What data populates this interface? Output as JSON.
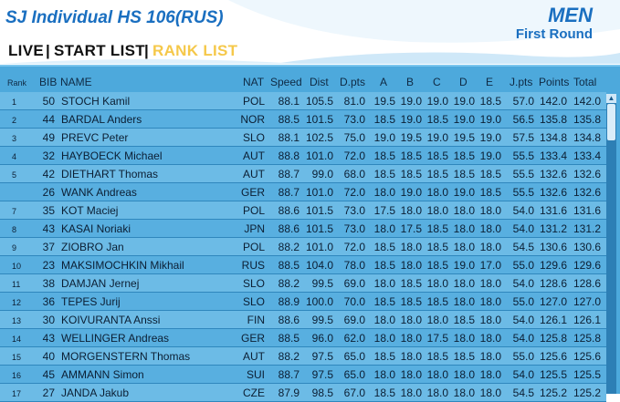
{
  "header": {
    "title": "SJ Individual HS 106(RUS)",
    "gender": "MEN",
    "round": "First Round"
  },
  "tabs": [
    {
      "label": "LIVE",
      "active": false
    },
    {
      "label": "START LIST",
      "active": false
    },
    {
      "label": "RANK LIST",
      "active": true
    }
  ],
  "separator": "|",
  "columns": {
    "rank": "Rank",
    "bib": "BIB",
    "name": "NAME",
    "nat": "NAT",
    "speed": "Speed",
    "dist": "Dist",
    "dpts": "D.pts",
    "a": "A",
    "b": "B",
    "c": "C",
    "d": "D",
    "e": "E",
    "jpts": "J.pts",
    "points": "Points",
    "total": "Total"
  },
  "rows": [
    {
      "rank": "1",
      "bib": "50",
      "name": "STOCH Kamil",
      "nat": "POL",
      "speed": "88.1",
      "dist": "105.5",
      "dpts": "81.0",
      "a": "19.5",
      "b": "19.0",
      "c": "19.0",
      "d": "19.0",
      "e": "18.5",
      "jpts": "57.0",
      "points": "142.0",
      "total": "142.0"
    },
    {
      "rank": "2",
      "bib": "44",
      "name": "BARDAL Anders",
      "nat": "NOR",
      "speed": "88.5",
      "dist": "101.5",
      "dpts": "73.0",
      "a": "18.5",
      "b": "19.0",
      "c": "18.5",
      "d": "19.0",
      "e": "19.0",
      "jpts": "56.5",
      "points": "135.8",
      "total": "135.8"
    },
    {
      "rank": "3",
      "bib": "49",
      "name": "PREVC Peter",
      "nat": "SLO",
      "speed": "88.1",
      "dist": "102.5",
      "dpts": "75.0",
      "a": "19.0",
      "b": "19.5",
      "c": "19.0",
      "d": "19.5",
      "e": "19.0",
      "jpts": "57.5",
      "points": "134.8",
      "total": "134.8"
    },
    {
      "rank": "4",
      "bib": "32",
      "name": "HAYBOECK Michael",
      "nat": "AUT",
      "speed": "88.8",
      "dist": "101.0",
      "dpts": "72.0",
      "a": "18.5",
      "b": "18.5",
      "c": "18.5",
      "d": "18.5",
      "e": "19.0",
      "jpts": "55.5",
      "points": "133.4",
      "total": "133.4"
    },
    {
      "rank": "5",
      "bib": "42",
      "name": "DIETHART Thomas",
      "nat": "AUT",
      "speed": "88.7",
      "dist": "99.0",
      "dpts": "68.0",
      "a": "18.5",
      "b": "18.5",
      "c": "18.5",
      "d": "18.5",
      "e": "18.5",
      "jpts": "55.5",
      "points": "132.6",
      "total": "132.6"
    },
    {
      "rank": "",
      "bib": "26",
      "name": "WANK Andreas",
      "nat": "GER",
      "speed": "88.7",
      "dist": "101.0",
      "dpts": "72.0",
      "a": "18.0",
      "b": "19.0",
      "c": "18.0",
      "d": "19.0",
      "e": "18.5",
      "jpts": "55.5",
      "points": "132.6",
      "total": "132.6"
    },
    {
      "rank": "7",
      "bib": "35",
      "name": "KOT Maciej",
      "nat": "POL",
      "speed": "88.6",
      "dist": "101.5",
      "dpts": "73.0",
      "a": "17.5",
      "b": "18.0",
      "c": "18.0",
      "d": "18.0",
      "e": "18.0",
      "jpts": "54.0",
      "points": "131.6",
      "total": "131.6"
    },
    {
      "rank": "8",
      "bib": "43",
      "name": "KASAI Noriaki",
      "nat": "JPN",
      "speed": "88.6",
      "dist": "101.5",
      "dpts": "73.0",
      "a": "18.0",
      "b": "17.5",
      "c": "18.5",
      "d": "18.0",
      "e": "18.0",
      "jpts": "54.0",
      "points": "131.2",
      "total": "131.2"
    },
    {
      "rank": "9",
      "bib": "37",
      "name": "ZIOBRO Jan",
      "nat": "POL",
      "speed": "88.2",
      "dist": "101.0",
      "dpts": "72.0",
      "a": "18.5",
      "b": "18.0",
      "c": "18.5",
      "d": "18.0",
      "e": "18.0",
      "jpts": "54.5",
      "points": "130.6",
      "total": "130.6"
    },
    {
      "rank": "10",
      "bib": "23",
      "name": "MAKSIMOCHKIN Mikhail",
      "nat": "RUS",
      "speed": "88.5",
      "dist": "104.0",
      "dpts": "78.0",
      "a": "18.5",
      "b": "18.0",
      "c": "18.5",
      "d": "19.0",
      "e": "17.0",
      "jpts": "55.0",
      "points": "129.6",
      "total": "129.6"
    },
    {
      "rank": "11",
      "bib": "38",
      "name": "DAMJAN Jernej",
      "nat": "SLO",
      "speed": "88.2",
      "dist": "99.5",
      "dpts": "69.0",
      "a": "18.0",
      "b": "18.5",
      "c": "18.0",
      "d": "18.0",
      "e": "18.0",
      "jpts": "54.0",
      "points": "128.6",
      "total": "128.6"
    },
    {
      "rank": "12",
      "bib": "36",
      "name": "TEPES Jurij",
      "nat": "SLO",
      "speed": "88.9",
      "dist": "100.0",
      "dpts": "70.0",
      "a": "18.5",
      "b": "18.5",
      "c": "18.5",
      "d": "18.0",
      "e": "18.0",
      "jpts": "55.0",
      "points": "127.0",
      "total": "127.0"
    },
    {
      "rank": "13",
      "bib": "30",
      "name": "KOIVURANTA Anssi",
      "nat": "FIN",
      "speed": "88.6",
      "dist": "99.5",
      "dpts": "69.0",
      "a": "18.0",
      "b": "18.0",
      "c": "18.0",
      "d": "18.5",
      "e": "18.0",
      "jpts": "54.0",
      "points": "126.1",
      "total": "126.1"
    },
    {
      "rank": "14",
      "bib": "43",
      "name": "WELLINGER Andreas",
      "nat": "GER",
      "speed": "88.5",
      "dist": "96.0",
      "dpts": "62.0",
      "a": "18.0",
      "b": "18.0",
      "c": "17.5",
      "d": "18.0",
      "e": "18.0",
      "jpts": "54.0",
      "points": "125.8",
      "total": "125.8"
    },
    {
      "rank": "15",
      "bib": "40",
      "name": "MORGENSTERN Thomas",
      "nat": "AUT",
      "speed": "88.2",
      "dist": "97.5",
      "dpts": "65.0",
      "a": "18.5",
      "b": "18.0",
      "c": "18.5",
      "d": "18.5",
      "e": "18.0",
      "jpts": "55.0",
      "points": "125.6",
      "total": "125.6"
    },
    {
      "rank": "16",
      "bib": "45",
      "name": "AMMANN Simon",
      "nat": "SUI",
      "speed": "88.7",
      "dist": "97.5",
      "dpts": "65.0",
      "a": "18.0",
      "b": "18.0",
      "c": "18.0",
      "d": "18.0",
      "e": "18.0",
      "jpts": "54.0",
      "points": "125.5",
      "total": "125.5"
    },
    {
      "rank": "17",
      "bib": "27",
      "name": "JANDA Jakub",
      "nat": "CZE",
      "speed": "87.9",
      "dist": "98.5",
      "dpts": "67.0",
      "a": "18.5",
      "b": "18.0",
      "c": "18.0",
      "d": "18.0",
      "e": "18.0",
      "jpts": "54.5",
      "points": "125.2",
      "total": "125.2"
    }
  ],
  "colors": {
    "brand": "#1a6fc0",
    "active_tab": "#f5c84a",
    "panel": "#4da9dc",
    "row_odd": "#6cbbe6",
    "row_even": "#58afe0"
  },
  "icons": {
    "scroll_up": "triangle-up-icon"
  }
}
